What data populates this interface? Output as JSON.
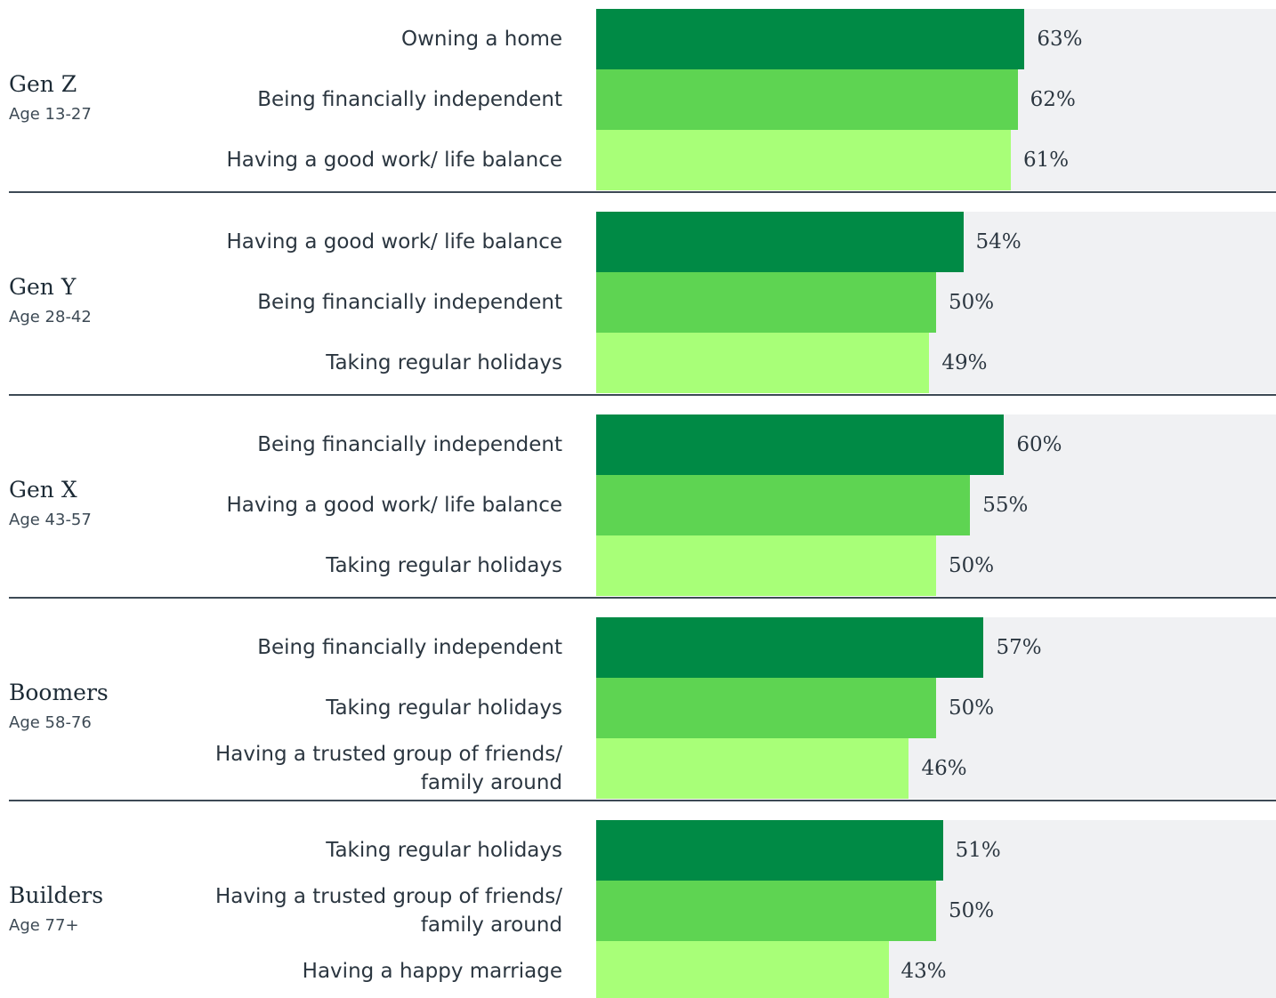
{
  "chart_data": {
    "type": "grouped-bar",
    "colors": [
      "#008a45",
      "#5ed452",
      "#a8ff78"
    ],
    "background": "#f0f1f3",
    "xlim": [
      0,
      100
    ],
    "groups": [
      {
        "name": "Gen Z",
        "subtitle": "Age 13-27",
        "categories": [
          "Owning a home",
          "Being financially independent",
          "Having a good work/ life balance"
        ],
        "values": [
          63,
          62,
          61
        ],
        "value_labels": [
          "63%",
          "62%",
          "61%"
        ]
      },
      {
        "name": "Gen Y",
        "subtitle": "Age 28-42",
        "categories": [
          "Having a good work/ life balance",
          "Being financially independent",
          "Taking regular holidays"
        ],
        "values": [
          54,
          50,
          49
        ],
        "value_labels": [
          "54%",
          "50%",
          "49%"
        ]
      },
      {
        "name": "Gen X",
        "subtitle": "Age 43-57",
        "categories": [
          "Being financially independent",
          "Having a good work/ life balance",
          "Taking regular holidays"
        ],
        "values": [
          60,
          55,
          50
        ],
        "value_labels": [
          "60%",
          "55%",
          "50%"
        ]
      },
      {
        "name": "Boomers",
        "subtitle": "Age 58-76",
        "categories": [
          "Being financially independent",
          "Taking regular holidays",
          "Having a trusted group of friends/ family around"
        ],
        "values": [
          57,
          50,
          46
        ],
        "value_labels": [
          "57%",
          "50%",
          "46%"
        ]
      },
      {
        "name": "Builders",
        "subtitle": "Age 77+",
        "categories": [
          "Taking regular holidays",
          "Having a trusted group of friends/ family around",
          "Having a happy marriage"
        ],
        "values": [
          51,
          50,
          43
        ],
        "value_labels": [
          "51%",
          "50%",
          "43%"
        ]
      }
    ]
  }
}
